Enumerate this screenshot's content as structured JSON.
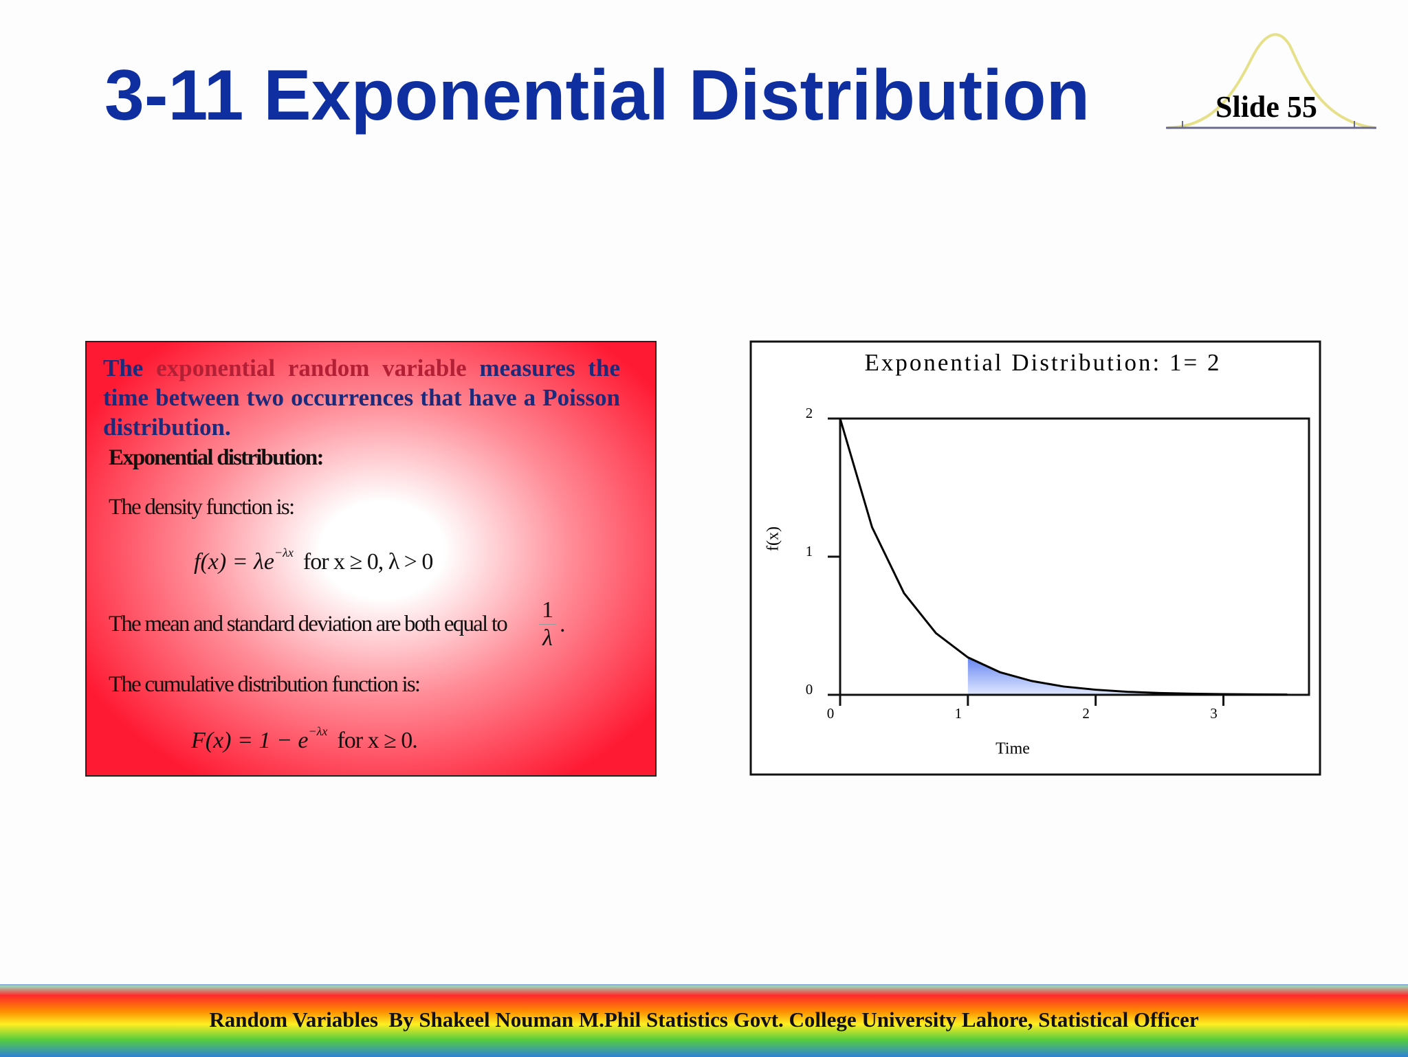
{
  "header": {
    "title": "3-11 Exponential Distribution",
    "slide_label": "Slide 55"
  },
  "text_box": {
    "intro_start": "The",
    "intro_highlight": "exponential random variable",
    "intro_end": "measures the time between two occurrences that have a Poisson distribution.",
    "heading": "Exponential distribution:",
    "density_label": "The density function is:",
    "density_formula": "f(x) = λe",
    "density_exponent": "−λx",
    "density_condition": "for x ≥ 0, λ > 0",
    "mean_label": "The mean and standard deviation are both equal to",
    "mean_numerator": "1",
    "mean_denominator": "λ",
    "mean_end": ".",
    "cdf_label": "The cumulative distribution function is:",
    "cdf_formula": "F(x) = 1 − e",
    "cdf_exponent": "−λx",
    "cdf_condition": "for x ≥ 0."
  },
  "chart_data": {
    "type": "line",
    "title": "Exponential Distribution: 1= 2",
    "x_label": "Time",
    "y_label": "f(x)",
    "x": [
      0,
      0.25,
      0.5,
      0.75,
      1,
      1.25,
      1.5,
      1.75,
      2,
      2.25,
      2.5,
      2.75,
      3,
      3.25,
      3.5
    ],
    "values": [
      2,
      1.213,
      0.736,
      0.446,
      0.271,
      0.164,
      0.1,
      0.06,
      0.037,
      0.022,
      0.013,
      0.008,
      0.005,
      0.003,
      0.002
    ],
    "color": "#000000",
    "shade_from": 1,
    "shade_color": "#6f8ff0",
    "xlim": [
      0,
      3.67
    ],
    "ylim": [
      0,
      2
    ],
    "xticks": [
      0,
      1,
      2,
      3
    ],
    "yticks": [
      0,
      1,
      2
    ]
  },
  "footer": {
    "text": "Random Variables  By Shakeel Nouman M.Phil Statistics Govt. College University Lahore, Statistical Officer"
  }
}
